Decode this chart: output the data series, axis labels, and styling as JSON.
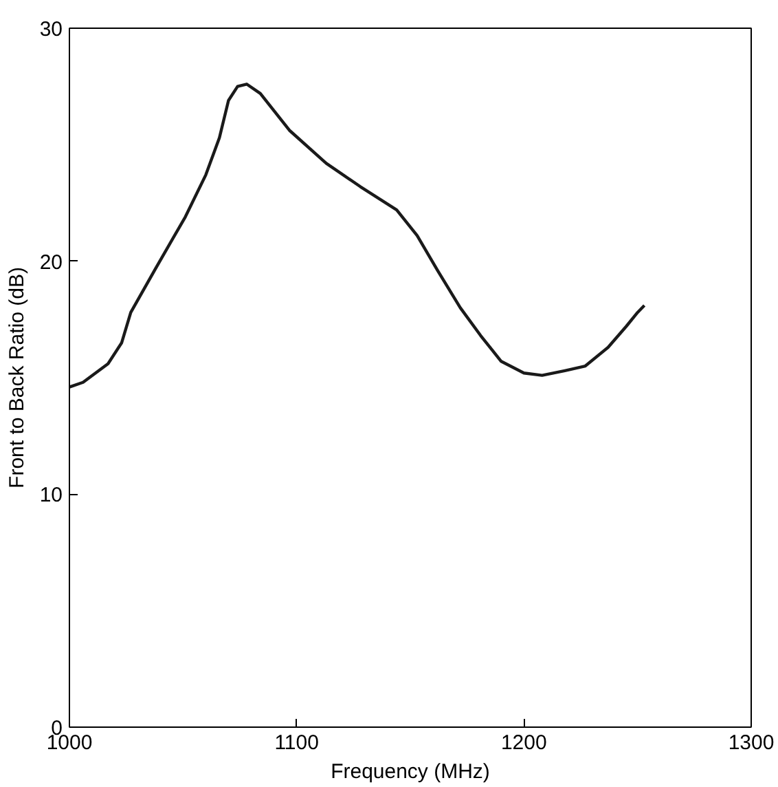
{
  "chart_data": {
    "type": "line",
    "xlabel": "Frequency (MHz)",
    "ylabel": "Front to Back Ratio (dB)",
    "x": [
      1000,
      1006,
      1017,
      1023,
      1027,
      1038,
      1051,
      1060,
      1066,
      1070,
      1074,
      1078,
      1084,
      1097,
      1113,
      1128,
      1144,
      1153,
      1162,
      1172,
      1181,
      1190,
      1200,
      1208,
      1218,
      1227,
      1237,
      1245,
      1250,
      1253
    ],
    "series": [
      {
        "color": "#1a1a1a",
        "values": [
          14.6,
          14.8,
          15.6,
          16.5,
          17.8,
          19.7,
          21.9,
          23.7,
          25.3,
          26.9,
          27.5,
          27.6,
          27.2,
          25.6,
          24.2,
          23.2,
          22.2,
          21.1,
          19.6,
          18.0,
          16.8,
          15.7,
          15.2,
          15.1,
          15.3,
          15.5,
          16.3,
          17.2,
          17.8,
          18.1
        ]
      }
    ],
    "xlim": [
      1000,
      1300
    ],
    "ylim": [
      0,
      30
    ],
    "xticks": [
      1000,
      1100,
      1200,
      1300
    ],
    "yticks": [
      0,
      10,
      20,
      30
    ],
    "grid": false,
    "line_style": "solid"
  }
}
